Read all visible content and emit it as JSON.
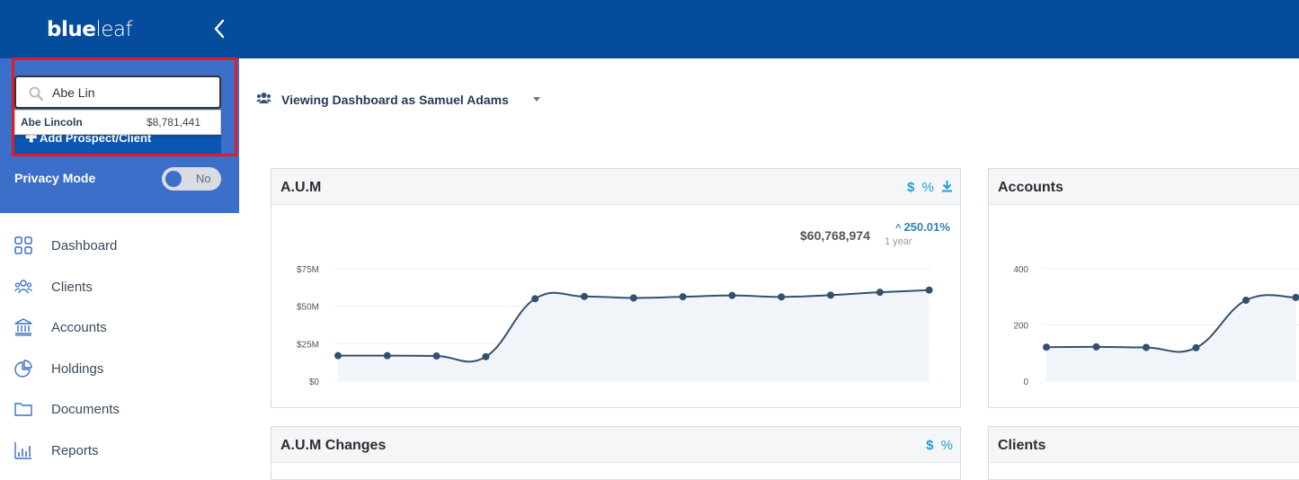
{
  "app": {
    "logo_bold": "blue",
    "logo_light": "leaf"
  },
  "search": {
    "value": "Abe Lin",
    "placeholder": ""
  },
  "search_result": {
    "name": "Abe Lincoln",
    "value": "$8,781,441"
  },
  "add_button": {
    "label": "Add Prospect/Client"
  },
  "privacy": {
    "label": "Privacy Mode",
    "state": "No"
  },
  "nav": [
    {
      "label": "Dashboard",
      "icon": "grid-icon"
    },
    {
      "label": "Clients",
      "icon": "people-icon"
    },
    {
      "label": "Accounts",
      "icon": "bank-icon"
    },
    {
      "label": "Holdings",
      "icon": "pie-chart-icon"
    },
    {
      "label": "Documents",
      "icon": "folder-icon"
    },
    {
      "label": "Reports",
      "icon": "bar-chart-icon"
    }
  ],
  "viewing": {
    "label": "Viewing Dashboard as Samuel Adams"
  },
  "cards": {
    "aum": {
      "title": "A.U.M",
      "tool_dollar": "$",
      "tool_percent": "%",
      "total": "$60,768,974",
      "change": "250.01%",
      "period": "1 year"
    },
    "accounts": {
      "title": "Accounts"
    },
    "aum_changes": {
      "title": "A.U.M Changes",
      "tool_dollar": "$",
      "tool_percent": "%"
    },
    "clients": {
      "title": "Clients"
    }
  },
  "colors": {
    "topbar": "#064c9c",
    "sidebar": "#3b6fc9",
    "accent": "#1e9cd7",
    "line": "#34506f",
    "highlight": "#e31b23"
  },
  "chart_data": [
    {
      "type": "area",
      "title": "A.U.M",
      "x": [
        1,
        2,
        3,
        4,
        5,
        6,
        7,
        8,
        9,
        10,
        11,
        12,
        13
      ],
      "values": [
        17,
        17,
        16.8,
        16.3,
        55,
        56.5,
        55.5,
        56.3,
        57.2,
        56.2,
        57.4,
        59.3,
        60.77
      ],
      "y_ticks": [
        "$0",
        "$25M",
        "$50M",
        "$75M"
      ],
      "ylim": [
        0,
        75
      ]
    },
    {
      "type": "area",
      "title": "Accounts",
      "x": [
        1,
        2,
        3,
        4,
        5,
        6
      ],
      "values": [
        121,
        122,
        120,
        119,
        288,
        298
      ],
      "y_ticks": [
        "0",
        "200",
        "400"
      ],
      "ylim": [
        0,
        400
      ]
    }
  ]
}
